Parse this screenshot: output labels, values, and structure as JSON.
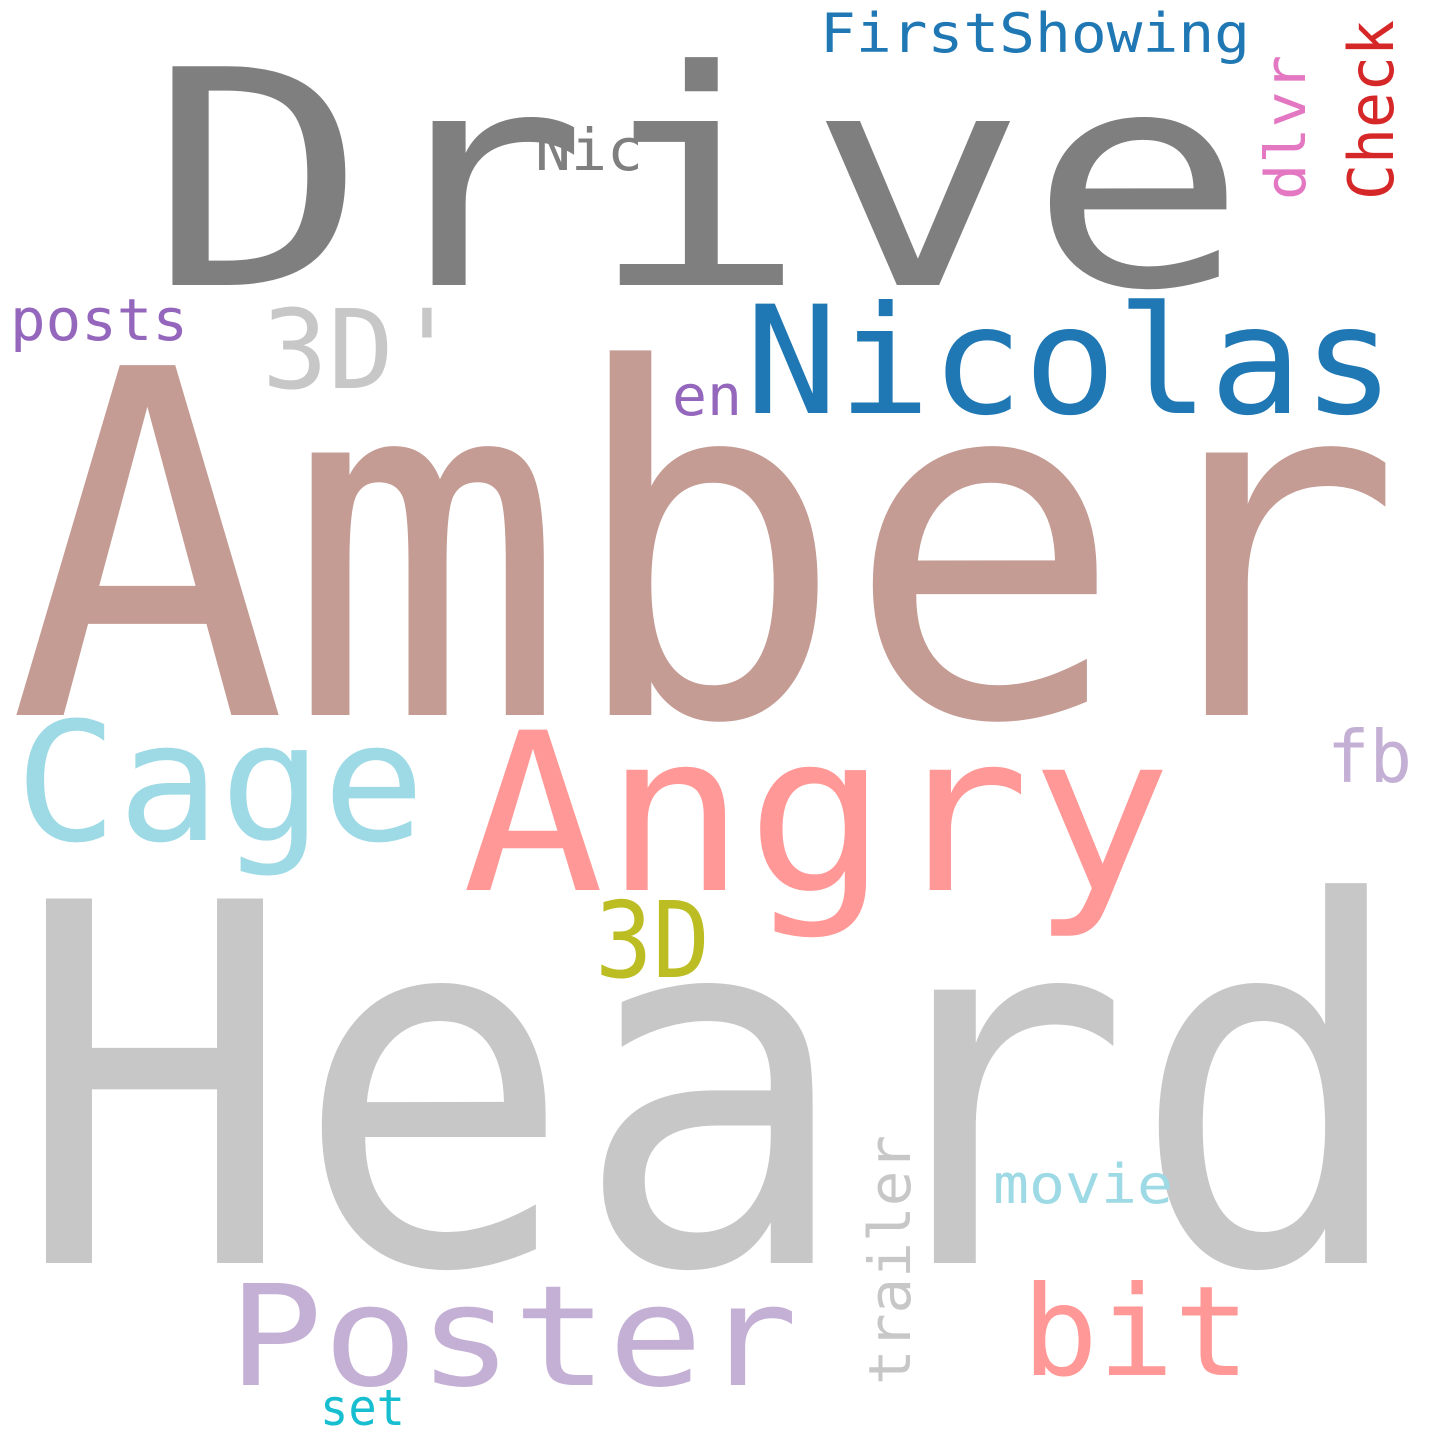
{
  "words": [
    {
      "text": "Drive",
      "color": "#7f7f7f"
    },
    {
      "text": "FirstShowing",
      "color": "#1f77b4"
    },
    {
      "text": "Nic",
      "color": "#7f7f7f"
    },
    {
      "text": "dlvr",
      "color": "#e377c2"
    },
    {
      "text": "Check",
      "color": "#d62728"
    },
    {
      "text": "posts",
      "color": "#9467bd"
    },
    {
      "text": "3D'",
      "color": "#c7c7c7"
    },
    {
      "text": "Nicolas",
      "color": "#1f77b4"
    },
    {
      "text": "en",
      "color": "#9467bd"
    },
    {
      "text": "Amber",
      "color": "#c49c94"
    },
    {
      "text": "Cage",
      "color": "#9edae5"
    },
    {
      "text": "Angry",
      "color": "#ff9896"
    },
    {
      "text": "fb",
      "color": "#c5b0d5"
    },
    {
      "text": "3D",
      "color": "#bcbd22"
    },
    {
      "text": "Heard",
      "color": "#c7c7c7"
    },
    {
      "text": "movie",
      "color": "#9edae5"
    },
    {
      "text": "trailer",
      "color": "#c7c7c7"
    },
    {
      "text": "Poster",
      "color": "#c5b0d5"
    },
    {
      "text": "bit",
      "color": "#ff9896"
    },
    {
      "text": "set",
      "color": "#17becf"
    }
  ]
}
